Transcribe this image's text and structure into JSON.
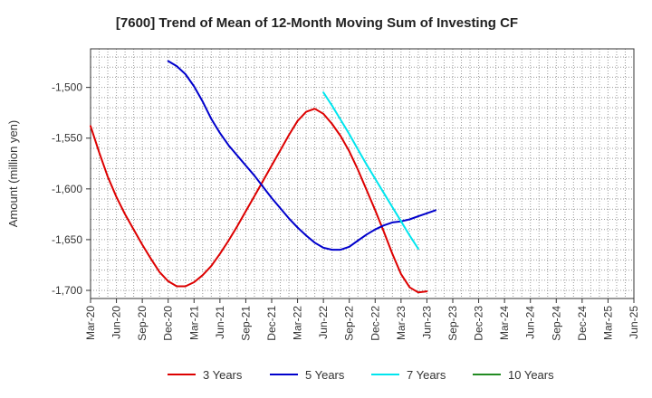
{
  "chart_data": {
    "type": "line",
    "title": "[7600]  Trend of Mean of 12-Month Moving Sum of Investing CF",
    "ylabel": "Amount (million yen)",
    "xlabel": "",
    "ylim": [
      -1708,
      -1462
    ],
    "yticks": [
      -1500,
      -1550,
      -1600,
      -1650,
      -1700
    ],
    "ytick_labels": [
      "-1,500",
      "-1,550",
      "-1,600",
      "-1,650",
      "-1,700"
    ],
    "xticks": [
      "Mar-20",
      "Jun-20",
      "Sep-20",
      "Dec-20",
      "Mar-21",
      "Jun-21",
      "Sep-21",
      "Dec-21",
      "Mar-22",
      "Jun-22",
      "Sep-22",
      "Dec-22",
      "Mar-23",
      "Jun-23",
      "Sep-23",
      "Dec-23",
      "Mar-24",
      "Jun-24",
      "Sep-24",
      "Dec-24",
      "Mar-25",
      "Jun-25"
    ],
    "grid": true,
    "legend_position": "bottom",
    "series": [
      {
        "name": "3 Years",
        "color": "#dd0000",
        "start_index": 0,
        "values": [
          -1538,
          -1564,
          -1588,
          -1608,
          -1625,
          -1640,
          -1655,
          -1669,
          -1682,
          -1691,
          -1696,
          -1696,
          -1692,
          -1685,
          -1676,
          -1664,
          -1651,
          -1637,
          -1622,
          -1607,
          -1592,
          -1577,
          -1562,
          -1547,
          -1533,
          -1524,
          -1521,
          -1526,
          -1536,
          -1548,
          -1563,
          -1581,
          -1601,
          -1621,
          -1642,
          -1664,
          -1684,
          -1697,
          -1702,
          -1701
        ]
      },
      {
        "name": "5 Years",
        "color": "#0000cc",
        "start_index": 9,
        "values": [
          -1474,
          -1479,
          -1487,
          -1499,
          -1514,
          -1531,
          -1545,
          -1557,
          -1567,
          -1577,
          -1587,
          -1598,
          -1609,
          -1619,
          -1629,
          -1638,
          -1646,
          -1653,
          -1658,
          -1660,
          -1660,
          -1657,
          -1651,
          -1645,
          -1640,
          -1636,
          -1633,
          -1632,
          -1630,
          -1627,
          -1624,
          -1621
        ]
      },
      {
        "name": "7 Years",
        "color": "#00e5ee",
        "start_index": 27,
        "values": [
          -1505,
          -1518,
          -1532,
          -1546,
          -1561,
          -1576,
          -1590,
          -1604,
          -1618,
          -1632,
          -1646,
          -1659
        ]
      },
      {
        "name": "10 Years",
        "color": "#228b22",
        "start_index": 0,
        "values": []
      }
    ]
  }
}
